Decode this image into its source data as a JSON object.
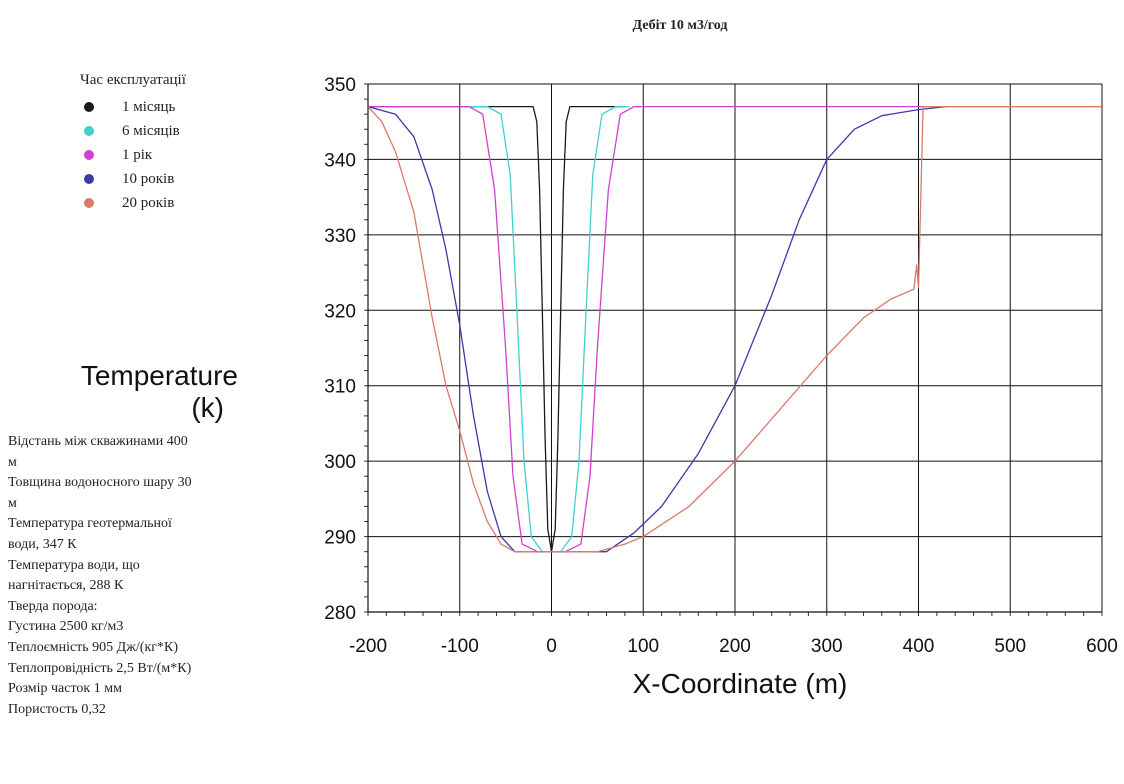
{
  "chart_data": {
    "type": "line",
    "title": "Дебіт 10 м3/год",
    "xlabel": "X-Coordinate (m)",
    "ylabel": "Temperature (k)",
    "xlim": [
      -200,
      600
    ],
    "ylim": [
      280,
      350
    ],
    "xticks": [
      "-200",
      "-100",
      "0",
      "100",
      "200",
      "300",
      "400",
      "500",
      "600"
    ],
    "yticks": [
      "280",
      "290",
      "300",
      "310",
      "320",
      "330",
      "340",
      "350"
    ],
    "grid": true,
    "legend": {
      "title": "Час експлуатації",
      "placement": "top-left"
    },
    "series": [
      {
        "name": "1 місяць",
        "color": "#1a1a1a",
        "points": [
          [
            -200,
            347
          ],
          [
            -20,
            347
          ],
          [
            -16,
            345
          ],
          [
            -13,
            336
          ],
          [
            -10,
            320
          ],
          [
            -7,
            303
          ],
          [
            -4,
            291
          ],
          [
            0,
            288
          ],
          [
            4,
            291
          ],
          [
            7,
            303
          ],
          [
            10,
            320
          ],
          [
            13,
            336
          ],
          [
            16,
            345
          ],
          [
            20,
            347
          ],
          [
            80,
            347
          ]
        ]
      },
      {
        "name": "6 місяців",
        "color": "#40d0d0",
        "points": [
          [
            -200,
            347
          ],
          [
            -70,
            347
          ],
          [
            -55,
            346
          ],
          [
            -45,
            338
          ],
          [
            -37,
            318
          ],
          [
            -30,
            300
          ],
          [
            -22,
            290
          ],
          [
            -10,
            288
          ],
          [
            10,
            288
          ],
          [
            22,
            290
          ],
          [
            30,
            300
          ],
          [
            37,
            318
          ],
          [
            45,
            338
          ],
          [
            55,
            346
          ],
          [
            70,
            347
          ],
          [
            85,
            347
          ]
        ]
      },
      {
        "name": "1 рік",
        "color": "#d040d0",
        "points": [
          [
            -200,
            347
          ],
          [
            -90,
            347
          ],
          [
            -75,
            346
          ],
          [
            -62,
            336
          ],
          [
            -50,
            315
          ],
          [
            -42,
            298
          ],
          [
            -32,
            289
          ],
          [
            -15,
            288
          ],
          [
            15,
            288
          ],
          [
            32,
            289
          ],
          [
            42,
            298
          ],
          [
            50,
            315
          ],
          [
            62,
            336
          ],
          [
            75,
            346
          ],
          [
            90,
            347
          ],
          [
            600,
            347
          ]
        ]
      },
      {
        "name": "10 років",
        "color": "#3a3aa8",
        "points": [
          [
            -200,
            347
          ],
          [
            -170,
            346
          ],
          [
            -150,
            343
          ],
          [
            -130,
            336
          ],
          [
            -115,
            328
          ],
          [
            -100,
            318
          ],
          [
            -85,
            306
          ],
          [
            -70,
            296
          ],
          [
            -55,
            290
          ],
          [
            -40,
            288
          ],
          [
            60,
            288
          ],
          [
            90,
            290.5
          ],
          [
            120,
            294
          ],
          [
            160,
            301
          ],
          [
            200,
            310
          ],
          [
            240,
            322
          ],
          [
            270,
            332
          ],
          [
            300,
            340
          ],
          [
            330,
            344
          ],
          [
            360,
            345.8
          ],
          [
            400,
            346.6
          ],
          [
            430,
            347
          ]
        ]
      },
      {
        "name": "20 років",
        "color": "#d97a6a",
        "points": [
          [
            -200,
            347
          ],
          [
            -185,
            345
          ],
          [
            -170,
            341
          ],
          [
            -150,
            333
          ],
          [
            -130,
            319
          ],
          [
            -115,
            310
          ],
          [
            -100,
            304
          ],
          [
            -85,
            297
          ],
          [
            -70,
            292
          ],
          [
            -55,
            289
          ],
          [
            -40,
            288
          ],
          [
            50,
            288
          ],
          [
            80,
            289
          ],
          [
            100,
            290
          ],
          [
            150,
            294
          ],
          [
            200,
            300
          ],
          [
            250,
            307
          ],
          [
            300,
            314
          ],
          [
            340,
            319
          ],
          [
            370,
            321.5
          ],
          [
            395,
            322.8
          ],
          [
            398,
            326
          ],
          [
            400,
            323
          ],
          [
            405,
            347
          ],
          [
            600,
            347
          ]
        ]
      }
    ]
  },
  "parameters": [
    "Відстань між скважинами 400",
    "м",
    "Товщина водоносного шару 30",
    "м",
    "Температура геотермальної",
    "води, 347 К",
    "Температура води, що",
    "нагнітається, 288 К",
    "Тверда порода:",
    "Густина 2500 кг/м3",
    "Теплоємність 905 Дж/(кг*К)",
    "Теплопровідність 2,5 Вт/(м*К)",
    "Розмір часток 1 мм",
    "Пористость 0,32"
  ],
  "ylabel_parts": [
    "Temperature",
    "(k)"
  ]
}
